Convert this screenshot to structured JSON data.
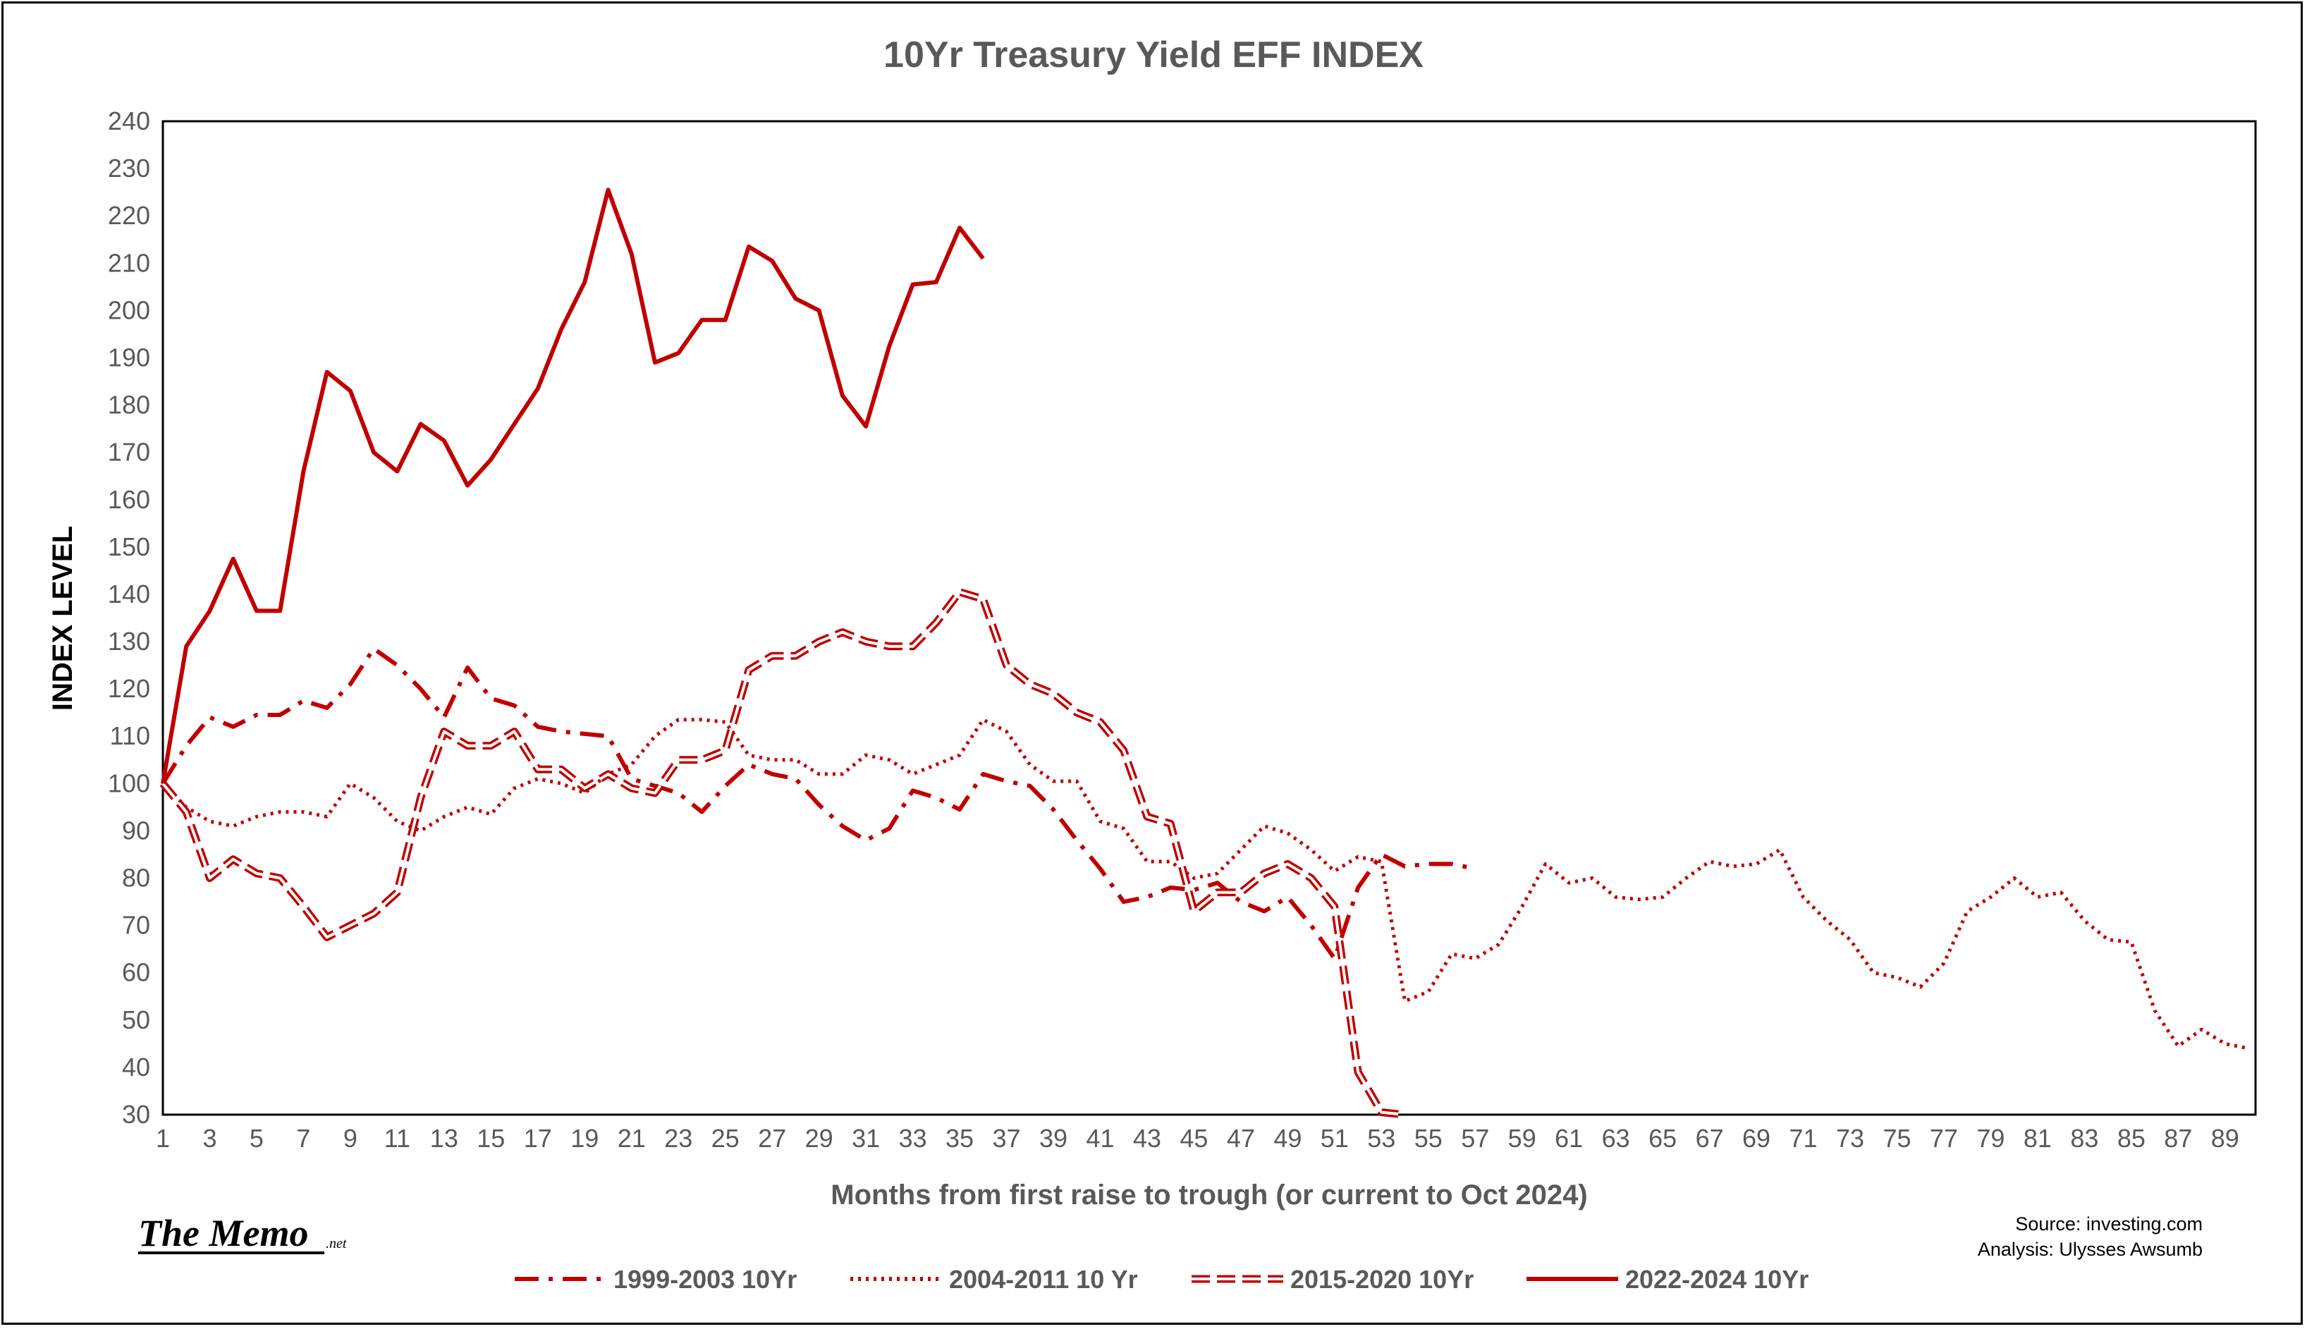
{
  "logo": {
    "main": "The Memo",
    "suffix": ".net"
  },
  "source": {
    "line1": "Source: investing.com",
    "line2": "Analysis: Ulysses Awsumb"
  },
  "colors": {
    "series": "#c00000",
    "axis": "#000000",
    "text": "#595959"
  },
  "chart_data": {
    "type": "line",
    "title": "10Yr Treasury Yield EFF INDEX",
    "xlabel": "Months from first raise to trough (or current to Oct 2024)",
    "ylabel": "INDEX LEVEL",
    "xlim": [
      1,
      90
    ],
    "ylim": [
      30,
      240
    ],
    "yticks": [
      30,
      40,
      50,
      60,
      70,
      80,
      90,
      100,
      110,
      120,
      130,
      140,
      150,
      160,
      170,
      180,
      190,
      200,
      210,
      220,
      230,
      240
    ],
    "xticks": [
      1,
      3,
      5,
      7,
      9,
      11,
      13,
      15,
      17,
      19,
      21,
      23,
      25,
      27,
      29,
      31,
      33,
      35,
      37,
      39,
      41,
      43,
      45,
      47,
      49,
      51,
      53,
      55,
      57,
      59,
      61,
      63,
      65,
      67,
      69,
      71,
      73,
      75,
      77,
      79,
      81,
      83,
      85,
      87,
      89
    ],
    "grid": false,
    "legend_position": "bottom",
    "series": [
      {
        "name": "1999-2003 10Yr",
        "style": "dashdot",
        "x": [
          1,
          2,
          3,
          4,
          5,
          6,
          7,
          8,
          9,
          10,
          11,
          12,
          13,
          14,
          15,
          16,
          17,
          18,
          19,
          20,
          21,
          22,
          23,
          24,
          25,
          26,
          27,
          28,
          29,
          30,
          31,
          32,
          33,
          34,
          35,
          36,
          37,
          38,
          39,
          40,
          41,
          42,
          43,
          44,
          45,
          46,
          47,
          48,
          49,
          50,
          51,
          52,
          53,
          54,
          55,
          56,
          57
        ],
        "values": [
          100,
          108,
          114,
          112,
          114.5,
          114.5,
          117.5,
          116,
          121,
          128.5,
          125,
          120,
          114,
          124.5,
          118,
          116.5,
          112,
          111,
          110.5,
          110,
          101,
          99.5,
          98,
          94,
          99.5,
          104,
          102,
          101,
          95.5,
          91,
          88,
          90.5,
          98.5,
          97,
          94.5,
          102,
          100.5,
          99.5,
          94.5,
          88,
          82,
          75,
          76,
          78,
          77.5,
          79,
          75,
          73,
          76,
          70,
          63,
          78,
          85,
          82.5,
          83,
          83,
          82
        ]
      },
      {
        "name": "2004-2011 10 Yr",
        "style": "dotted",
        "x": [
          1,
          2,
          3,
          4,
          5,
          6,
          7,
          8,
          9,
          10,
          11,
          12,
          13,
          14,
          15,
          16,
          17,
          18,
          19,
          20,
          21,
          22,
          23,
          24,
          25,
          26,
          27,
          28,
          29,
          30,
          31,
          32,
          33,
          34,
          35,
          36,
          37,
          38,
          39,
          40,
          41,
          42,
          43,
          44,
          45,
          46,
          47,
          48,
          49,
          50,
          51,
          52,
          53,
          54,
          55,
          56,
          57,
          58,
          59,
          60,
          61,
          62,
          63,
          64,
          65,
          66,
          67,
          68,
          69,
          70,
          71,
          72,
          73,
          74,
          75,
          76,
          77,
          78,
          79,
          80,
          81,
          82,
          83,
          84,
          85,
          86,
          87,
          88,
          89,
          90
        ],
        "values": [
          100,
          95,
          92,
          91,
          93,
          94,
          94,
          93,
          100,
          97,
          92,
          90,
          93,
          95,
          93.5,
          99,
          101,
          100,
          98,
          102,
          104,
          110,
          113.5,
          113.5,
          113,
          106,
          105,
          105,
          102,
          102,
          106,
          105,
          102,
          104,
          106,
          113.5,
          111,
          104,
          100.5,
          100.5,
          92,
          90.5,
          83.5,
          83.5,
          80,
          81,
          86,
          91,
          89.5,
          86,
          81.5,
          84.5,
          83.5,
          54,
          56,
          64,
          63,
          66,
          74,
          83,
          79,
          80,
          76,
          75.5,
          76,
          80,
          83.5,
          82.5,
          83,
          86,
          76,
          71,
          67,
          60,
          59,
          57,
          62,
          73,
          76,
          80,
          76,
          77,
          71,
          67,
          66.5,
          52,
          44.5,
          48,
          45,
          44
        ]
      },
      {
        "name": "2015-2020 10Yr",
        "style": "dashed",
        "x": [
          1,
          2,
          3,
          4,
          5,
          6,
          7,
          8,
          9,
          10,
          11,
          12,
          13,
          14,
          15,
          16,
          17,
          18,
          19,
          20,
          21,
          22,
          23,
          24,
          25,
          26,
          27,
          28,
          29,
          30,
          31,
          32,
          33,
          34,
          35,
          36,
          37,
          38,
          39,
          40,
          41,
          42,
          43,
          44,
          45,
          46,
          47,
          48,
          49,
          50,
          51,
          52,
          53,
          54
        ],
        "values": [
          100,
          94,
          80,
          84,
          81,
          80,
          74,
          67.5,
          70,
          72.5,
          77,
          97,
          111,
          108,
          108,
          111,
          103,
          103,
          99,
          102,
          99,
          98,
          105,
          105,
          107,
          124,
          127,
          127,
          130,
          132,
          130,
          129,
          129,
          134,
          140.5,
          139,
          125,
          121,
          119,
          115,
          113,
          107,
          93,
          91.5,
          73,
          77,
          77,
          81,
          83,
          80,
          74,
          39,
          30.5,
          30
        ]
      },
      {
        "name": "2022-2024 10Yr",
        "style": "solid",
        "x": [
          1,
          2,
          3,
          4,
          5,
          6,
          7,
          8,
          9,
          10,
          11,
          12,
          13,
          14,
          15,
          16,
          17,
          18,
          19,
          20,
          21,
          22,
          23,
          24,
          25,
          26,
          27,
          28,
          29,
          30,
          31,
          32,
          33,
          34,
          35,
          36
        ],
        "values": [
          100,
          129,
          136.5,
          147.5,
          136.5,
          136.5,
          166,
          187,
          183,
          170,
          166,
          176,
          172.5,
          163,
          168.5,
          176,
          183.5,
          196,
          206,
          225.5,
          212,
          189,
          191,
          198,
          198,
          213.5,
          210.5,
          202.5,
          200,
          182,
          175.5,
          192.5,
          205.5,
          206,
          217.5,
          211
        ]
      }
    ]
  }
}
